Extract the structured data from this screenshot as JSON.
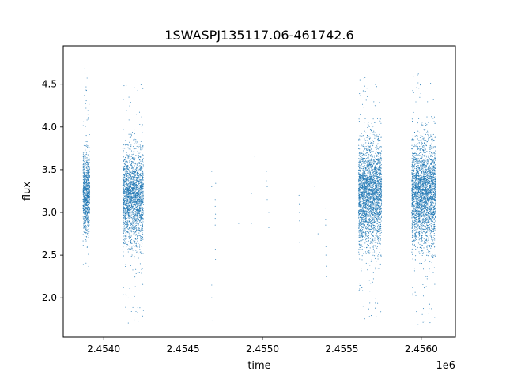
{
  "chart_data": {
    "type": "scatter",
    "title": "1SWASPJ135117.06-461742.6",
    "xlabel": "time",
    "ylabel": "flux",
    "x_offset_label": "1e6",
    "xlim": [
      2453745,
      2456215
    ],
    "ylim": [
      1.54,
      4.95
    ],
    "x_ticks": [
      2.454,
      2.4545,
      2.455,
      2.4555,
      2.456
    ],
    "x_tick_labels": [
      "2.4540",
      "2.4545",
      "2.4550",
      "2.4555",
      "2.4560"
    ],
    "y_ticks": [
      2.0,
      2.5,
      3.0,
      3.5,
      4.0,
      4.5
    ],
    "y_tick_labels": [
      "2.0",
      "2.5",
      "3.0",
      "3.5",
      "4.0",
      "4.5"
    ],
    "grid": false,
    "marker_color": "#1f77b4",
    "clusters": [
      {
        "x_start": 2453870,
        "x_end": 2453912,
        "flux_center": 3.22,
        "flux_spread": 0.24,
        "flux_min": 2.1,
        "flux_max": 4.77,
        "count": 900
      },
      {
        "x_start": 2454120,
        "x_end": 2454250,
        "flux_center": 3.18,
        "flux_spread": 0.27,
        "flux_min": 1.7,
        "flux_max": 4.68,
        "count": 2200
      },
      {
        "x_start": 2455605,
        "x_end": 2455750,
        "flux_center": 3.22,
        "flux_spread": 0.3,
        "flux_min": 1.75,
        "flux_max": 4.75,
        "count": 2800
      },
      {
        "x_start": 2455940,
        "x_end": 2456090,
        "flux_center": 3.22,
        "flux_spread": 0.3,
        "flux_min": 1.68,
        "flux_max": 4.8,
        "count": 3000
      }
    ],
    "sparse_points": [
      {
        "x": 2454680,
        "y": 3.48
      },
      {
        "x": 2454680,
        "y": 3.3
      },
      {
        "x": 2454680,
        "y": 2.15
      },
      {
        "x": 2454680,
        "y": 2.0
      },
      {
        "x": 2454682,
        "y": 1.73
      },
      {
        "x": 2454702,
        "y": 3.15
      },
      {
        "x": 2454702,
        "y": 3.07
      },
      {
        "x": 2454702,
        "y": 2.93
      },
      {
        "x": 2454702,
        "y": 2.85
      },
      {
        "x": 2454703,
        "y": 2.7
      },
      {
        "x": 2454703,
        "y": 2.57
      },
      {
        "x": 2454704,
        "y": 2.45
      },
      {
        "x": 2454704,
        "y": 2.98
      },
      {
        "x": 2454705,
        "y": 3.34
      },
      {
        "x": 2454850,
        "y": 2.87
      },
      {
        "x": 2454930,
        "y": 3.22
      },
      {
        "x": 2454930,
        "y": 2.87
      },
      {
        "x": 2454952,
        "y": 3.65
      },
      {
        "x": 2455025,
        "y": 3.48
      },
      {
        "x": 2455025,
        "y": 3.37
      },
      {
        "x": 2455030,
        "y": 3.3
      },
      {
        "x": 2455030,
        "y": 3.15
      },
      {
        "x": 2455040,
        "y": 2.82
      },
      {
        "x": 2455040,
        "y": 3.0
      },
      {
        "x": 2455230,
        "y": 3.2
      },
      {
        "x": 2455232,
        "y": 3.1
      },
      {
        "x": 2455232,
        "y": 3.0
      },
      {
        "x": 2455233,
        "y": 2.9
      },
      {
        "x": 2455234,
        "y": 2.65
      },
      {
        "x": 2455330,
        "y": 3.3
      },
      {
        "x": 2455350,
        "y": 2.75
      },
      {
        "x": 2455395,
        "y": 3.05
      },
      {
        "x": 2455398,
        "y": 2.92
      },
      {
        "x": 2455400,
        "y": 2.6
      },
      {
        "x": 2455400,
        "y": 2.5
      },
      {
        "x": 2455402,
        "y": 2.37
      },
      {
        "x": 2455402,
        "y": 2.25
      },
      {
        "x": 2455398,
        "y": 2.85
      },
      {
        "x": 2455405,
        "y": 2.7
      }
    ]
  }
}
